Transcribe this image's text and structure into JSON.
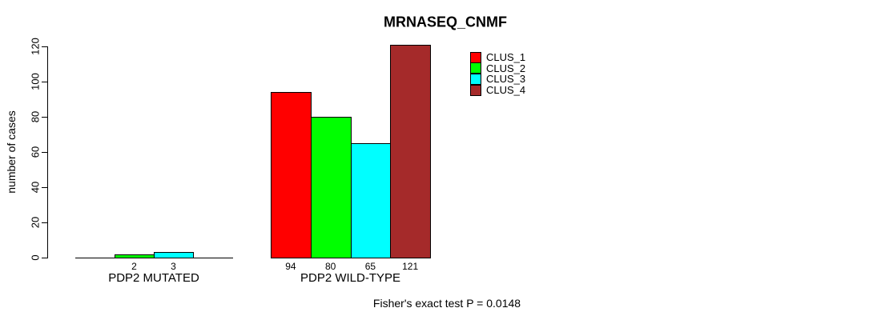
{
  "title": "MRNASEQ_CNMF",
  "footer": "Fisher's exact test P = 0.0148",
  "colors": {
    "background": "#ffffff",
    "axis": "#000000",
    "clus_1": "#ff0000",
    "clus_2": "#00ff00",
    "clus_3": "#00ffff",
    "clus_4": "#a52a2a"
  },
  "chart_data": {
    "type": "bar",
    "title": "MRNASEQ_CNMF",
    "xlabel": "",
    "ylabel": "number of cases",
    "ylim": [
      0,
      120
    ],
    "yticks": [
      "0",
      "20",
      "40",
      "60",
      "80",
      "100",
      "120"
    ],
    "ytick_values": [
      0,
      20,
      40,
      60,
      80,
      100,
      120
    ],
    "grid": false,
    "legend_position": "top-right-inside",
    "categories": [
      "PDP2 MUTATED",
      "PDP2 WILD-TYPE"
    ],
    "series": [
      {
        "name": "CLUS_1",
        "color": "#ff0000",
        "values": [
          0,
          94
        ]
      },
      {
        "name": "CLUS_2",
        "color": "#00ff00",
        "values": [
          2,
          80
        ]
      },
      {
        "name": "CLUS_3",
        "color": "#00ffff",
        "values": [
          3,
          65
        ]
      },
      {
        "name": "CLUS_4",
        "color": "#a52a2a",
        "values": [
          0,
          121
        ]
      }
    ],
    "bar_value_labels": [
      [
        "",
        "2",
        "3",
        ""
      ],
      [
        "94",
        "80",
        "65",
        "121"
      ]
    ],
    "annotation": "Fisher's exact test P = 0.0148"
  }
}
